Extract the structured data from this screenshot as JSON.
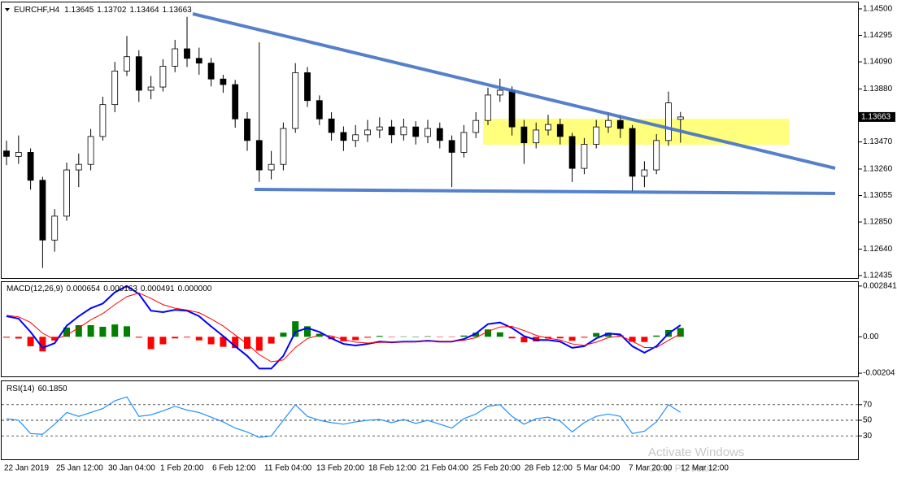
{
  "chart_data": [
    {
      "type": "candlestick",
      "title": "EURCHF,H4",
      "up_color": "#ffffff",
      "down_color": "#000000",
      "outline_color": "#000000",
      "time_labels": [
        "22 Jan 2019",
        "25 Jan 12:00",
        "30 Jan 04:00",
        "1 Feb 20:00",
        "6 Feb 12:00",
        "11 Feb 04:00",
        "13 Feb 20:00",
        "18 Feb 12:00",
        "21 Feb 04:00",
        "25 Feb 20:00",
        "28 Feb 12:00",
        "5 Mar 04:00",
        "7 Mar 20:00",
        "12 Mar 12:00"
      ],
      "open": [
        1.134,
        1.13358,
        1.13389,
        1.13173,
        1.1271,
        1.12895,
        1.13253,
        1.13296,
        1.13512,
        1.13759,
        1.14019,
        1.1413,
        1.1387,
        1.13895,
        1.14056,
        1.14191,
        1.14117,
        1.1408,
        1.13957,
        1.13914,
        1.13648,
        1.13481,
        1.13253,
        1.13296,
        1.13574,
        1.14006,
        1.1379,
        1.13648,
        1.13543,
        1.13481,
        1.13525,
        1.13562,
        1.13586,
        1.13525,
        1.13586,
        1.13512,
        1.13574,
        1.13481,
        1.13389,
        1.13543,
        1.13636,
        1.13833,
        1.1387,
        1.13586,
        1.13463,
        1.13562,
        1.13605,
        1.13512,
        1.13265,
        1.13451,
        1.13586,
        1.13636,
        1.13574,
        1.13204,
        1.13253,
        1.13481,
        1.13645
      ],
      "high": [
        1.1348,
        1.1352,
        1.1342,
        1.132,
        1.1295,
        1.1331,
        1.1338,
        1.1357,
        1.1382,
        1.1409,
        1.1429,
        1.1418,
        1.1398,
        1.1411,
        1.1426,
        1.14438,
        1.142,
        1.1412,
        1.1399,
        1.1395,
        1.137,
        1.14241,
        1.134,
        1.1362,
        1.1408,
        1.1405,
        1.1383,
        1.137,
        1.1359,
        1.136,
        1.1364,
        1.1366,
        1.1364,
        1.1365,
        1.1363,
        1.1364,
        1.1362,
        1.1352,
        1.136,
        1.137,
        1.1389,
        1.1396,
        1.139,
        1.1364,
        1.1362,
        1.1368,
        1.1365,
        1.1354,
        1.135,
        1.1364,
        1.137,
        1.1368,
        1.136,
        1.1332,
        1.1353,
        1.1386,
        1.13702
      ],
      "low": [
        1.1329,
        1.133,
        1.131,
        1.12494,
        1.1262,
        1.1286,
        1.1312,
        1.1325,
        1.1348,
        1.137,
        1.1398,
        1.1378,
        1.138,
        1.1386,
        1.1401,
        1.1405,
        1.1399,
        1.139,
        1.1385,
        1.1358,
        1.134,
        1.1316,
        1.1318,
        1.1325,
        1.1354,
        1.1374,
        1.136,
        1.1348,
        1.134,
        1.1343,
        1.1347,
        1.135,
        1.1346,
        1.1348,
        1.1345,
        1.1346,
        1.1342,
        1.1312,
        1.1335,
        1.135,
        1.136,
        1.1378,
        1.1352,
        1.133,
        1.1342,
        1.1352,
        1.1345,
        1.1316,
        1.1322,
        1.1342,
        1.1354,
        1.135,
        1.1308,
        1.1312,
        1.1322,
        1.1344,
        1.13464
      ],
      "close": [
        1.13358,
        1.13389,
        1.13173,
        1.1271,
        1.12895,
        1.13253,
        1.13296,
        1.13512,
        1.13759,
        1.14019,
        1.1413,
        1.1387,
        1.13895,
        1.14056,
        1.14191,
        1.14117,
        1.1408,
        1.13957,
        1.13914,
        1.13648,
        1.13481,
        1.13253,
        1.13296,
        1.13574,
        1.14006,
        1.1379,
        1.13648,
        1.13543,
        1.13481,
        1.13525,
        1.13562,
        1.13586,
        1.13525,
        1.13586,
        1.13512,
        1.13574,
        1.13481,
        1.13389,
        1.13543,
        1.13636,
        1.13833,
        1.1387,
        1.13586,
        1.13463,
        1.13562,
        1.13605,
        1.13512,
        1.13265,
        1.13451,
        1.13586,
        1.13636,
        1.13574,
        1.13204,
        1.13253,
        1.13481,
        1.13772,
        1.13663
      ],
      "ylim": [
        1.12416,
        1.1455
      ],
      "yticks": [
        {
          "value": 1.145,
          "label": "1.14500"
        },
        1.14295,
        {
          "value": 1.1409,
          "label": "1.14090"
        },
        {
          "value": 1.1388,
          "label": "1.13880"
        },
        {
          "value": 1.1347,
          "label": "1.13470"
        },
        {
          "value": 1.1326,
          "label": "1.13260"
        },
        1.13055,
        {
          "value": 1.1285,
          "label": "1.12850"
        },
        {
          "value": 1.1264,
          "label": "1.12640"
        },
        1.12435
      ]
    },
    {
      "type": "macd",
      "title": "MACD(12,26,9)",
      "extra_value": {
        "value": 0,
        "label": "0.000000"
      },
      "series": [
        {
          "color": "#0000ff",
          "values": [
            0.00115,
            0.00102,
            0.00027,
            -0.00062,
            -0.00036,
            0.00062,
            0.00115,
            0.0016,
            0.00186,
            0.00249,
            0.00284,
            0.0024,
            0.00146,
            0.00138,
            0.00151,
            0.00146,
            0.00115,
            0.00058,
            4e-05,
            -0.00053,
            -0.00107,
            -0.00178,
            -0.00178,
            -0.00107,
            0.00027,
            0.00049,
            0.00027,
            -9e-05,
            -0.0004,
            -0.00049,
            -0.0004,
            -0.00027,
            -0.00031,
            -0.00027,
            -0.00027,
            -0.00022,
            -0.00027,
            -0.00027,
            -0.00013,
            0.00018,
            0.00071,
            0.0008,
            0.00049,
            4e-05,
            -0.00018,
            -0.00018,
            -0.00027,
            -0.00062,
            -0.00053,
            -9e-05,
            0.00018,
            0.00013,
            -0.00053,
            -0.00089,
            -0.00053,
            0.00018,
            0.000654
          ]
        },
        {
          "color": "#ff0000",
          "values": [
            0.0012,
            0.00112,
            0.0008,
            0.0002,
            -0.00015,
            0.0001,
            0.0005,
            0.00095,
            0.0013,
            0.0018,
            0.00225,
            0.00245,
            0.00215,
            0.0018,
            0.0016,
            0.0015,
            0.00135,
            0.001,
            0.0006,
            0.0001,
            -0.0004,
            -0.001,
            -0.0014,
            -0.0013,
            -0.0006,
            -0.0001,
            0.0001,
            5e-05,
            -0.00015,
            -0.0003,
            -0.00035,
            -0.00032,
            -0.0003,
            -0.00029,
            -0.00028,
            -0.00025,
            -0.00026,
            -0.00026,
            -0.0002,
            -5e-05,
            0.0003,
            0.00055,
            0.00058,
            0.00035,
            8e-05,
            -8e-05,
            -0.00018,
            -0.0004,
            -0.00048,
            -0.0003,
            -5e-05,
            5e-05,
            -0.00025,
            -0.0006,
            -0.0006,
            -0.0002,
            0.000163
          ]
        }
      ],
      "histogram": {
        "pos_color": "#008000",
        "neg_color": "#ff0000",
        "values": [
          -5e-05,
          -0.0001,
          -0.00053,
          -0.00082,
          -0.00021,
          0.00052,
          0.00065,
          0.00065,
          0.00056,
          0.00069,
          0.00059,
          -5e-05,
          -0.00069,
          -0.00042,
          -9e-05,
          -4e-05,
          -0.0002,
          -0.00042,
          -0.00056,
          -0.00063,
          -0.00067,
          -0.00078,
          -0.00038,
          0.00023,
          0.00087,
          0.00059,
          0.00017,
          -0.00014,
          -0.00025,
          -0.00019,
          -5e-05,
          5e-05,
          -1e-05,
          2e-05,
          1e-05,
          3e-05,
          -1e-05,
          -1e-05,
          7e-05,
          0.00023,
          0.00041,
          0.00025,
          -9e-05,
          -0.00031,
          -0.00026,
          -0.0001,
          -9e-05,
          -0.00022,
          -5e-05,
          0.00021,
          0.00023,
          8e-05,
          -0.00028,
          -0.00029,
          7e-05,
          0.00038,
          0.000491
        ]
      },
      "ylim": [
        -0.002218,
        0.003063
      ],
      "yticks": [
        0.002841,
        {
          "value": 0,
          "label": "0.00"
        },
        -0.00204
      ]
    },
    {
      "type": "rsi",
      "title": "RSI(14)",
      "last_value_label": "60.1850",
      "color": "#1e90ff",
      "values": [
        52,
        50,
        33,
        32,
        45,
        60,
        55,
        60,
        65,
        75,
        80,
        55,
        57,
        62,
        68,
        63,
        60,
        54,
        48,
        40,
        35,
        28,
        30,
        50,
        70,
        55,
        50,
        47,
        45,
        48,
        50,
        51,
        47,
        51,
        46,
        50,
        45,
        40,
        52,
        58,
        68,
        70,
        55,
        45,
        52,
        54,
        49,
        35,
        47,
        55,
        58,
        55,
        33,
        36,
        48,
        70,
        60.185
      ],
      "ylim": [
        0,
        100
      ],
      "yticks": [
        70,
        50,
        30
      ],
      "grid": "dashed"
    }
  ],
  "watermark": {
    "line1": "Activate Windows",
    "line2": "Go to PC settin"
  }
}
